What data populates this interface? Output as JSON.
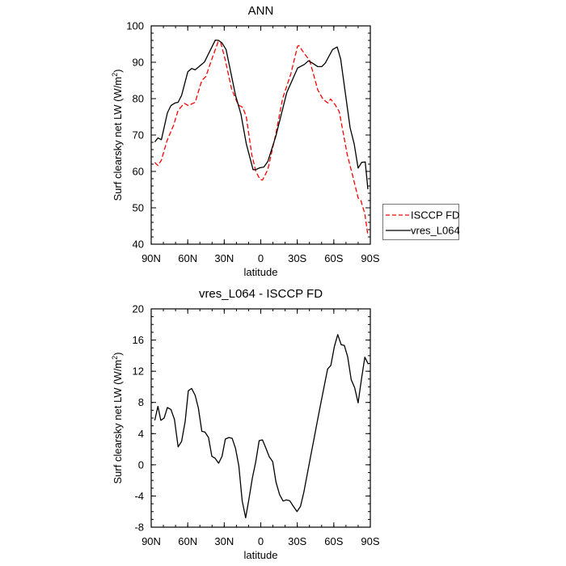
{
  "chart_data": [
    {
      "type": "line",
      "title": "ANN",
      "xlabel": "latitude",
      "ylabel": "Surf clearsky net LW (W/m",
      "ylabel_sup": "2",
      "ylabel_end": ")",
      "xlim": [
        90,
        -90
      ],
      "ylim": [
        40,
        100
      ],
      "xticks": [
        90,
        60,
        30,
        0,
        -30,
        -60,
        -90
      ],
      "xtick_labels": [
        "90N",
        "60N",
        "30N",
        "0",
        "30S",
        "60S",
        "90S"
      ],
      "yticks": [
        40,
        50,
        60,
        70,
        80,
        90,
        100
      ],
      "ytick_labels": [
        "40",
        "50",
        "60",
        "70",
        "80",
        "90",
        "100"
      ],
      "legend": {
        "placement": "right",
        "entries": [
          "ISCCP FD",
          "vres_L064"
        ]
      },
      "series": [
        {
          "name": "ISCCP FD",
          "color": "#ff0000",
          "dash": true,
          "x": [
            87.1,
            84.5,
            81.6,
            77.2,
            71.6,
            67.9,
            62.8,
            59.5,
            53.9,
            48.4,
            45.1,
            40.6,
            35.1,
            32.9,
            29.6,
            24,
            18.5,
            14.8,
            11.9,
            7.4,
            4.1,
            0.8,
            -1.4,
            -5.8,
            -12.5,
            -18,
            -24.7,
            -30.2,
            -31.3,
            -35.8,
            -40.2,
            -46.8,
            -51.2,
            -55.2,
            -57.4,
            -61.2,
            -64.5,
            -71.1,
            -75.6,
            -80,
            -82.2,
            -85.5,
            -88
          ],
          "y": [
            62.5,
            61.6,
            63.1,
            68.3,
            72.7,
            76.8,
            78.7,
            78.1,
            79,
            85,
            86.1,
            90.5,
            95.6,
            95.4,
            91.3,
            82.7,
            78.3,
            77.6,
            75,
            64.6,
            60.1,
            57.9,
            57.6,
            60.5,
            70.5,
            80.1,
            86.8,
            94.4,
            94.6,
            92.4,
            90.5,
            82.4,
            79.8,
            78.8,
            79.9,
            78.3,
            76.4,
            64.6,
            58.7,
            52.7,
            52,
            48.4,
            42.4
          ]
        },
        {
          "name": "vres_L064",
          "color": "#000000",
          "dash": false,
          "x": [
            87.1,
            84.5,
            81.6,
            76.7,
            73.8,
            70.5,
            67.9,
            65,
            59.9,
            56.8,
            53.9,
            46.2,
            37.3,
            34.6,
            31.8,
            28.5,
            20.7,
            16.3,
            11.9,
            6.3,
            4.1,
            0.8,
            -2.5,
            -5.8,
            -12.5,
            -21.4,
            -24.7,
            -30.2,
            -35.8,
            -39.1,
            -42.4,
            -46.8,
            -50.1,
            -53,
            -59,
            -62.8,
            -65.6,
            -73.4,
            -76.7,
            -80,
            -82.9,
            -85.8,
            -88
          ],
          "y": [
            68.1,
            69.2,
            68.7,
            76.1,
            78.1,
            78.8,
            79,
            80.9,
            87.4,
            88.3,
            87.9,
            90.1,
            96.1,
            96,
            95.3,
            93.5,
            80.9,
            75.7,
            67.6,
            60.5,
            60.5,
            61,
            61.2,
            62.7,
            69.8,
            81.7,
            84.2,
            88.4,
            89.4,
            90.4,
            89.8,
            88.8,
            88.8,
            89.8,
            93.5,
            94.2,
            90.9,
            72,
            67.6,
            60.9,
            62.5,
            62.6,
            55.1
          ]
        }
      ]
    },
    {
      "type": "line",
      "title": "vres_L064 - ISCCP FD",
      "xlabel": "latitude",
      "ylabel": "Surf clearsky net LW (W/m",
      "ylabel_sup": "2",
      "ylabel_end": ")",
      "xlim": [
        90,
        -90
      ],
      "ylim": [
        -8,
        20
      ],
      "xticks": [
        90,
        60,
        30,
        0,
        -30,
        -60,
        -90
      ],
      "xtick_labels": [
        "90N",
        "60N",
        "30N",
        "0",
        "30S",
        "60S",
        "90S"
      ],
      "yticks": [
        -8,
        -4,
        0,
        4,
        8,
        12,
        16,
        20
      ],
      "ytick_labels": [
        "-8",
        "-4",
        "0",
        "4",
        "8",
        "12",
        "16",
        "20"
      ],
      "series": [
        {
          "name": "vres_L064 - ISCCP FD",
          "color": "#000000",
          "dash": false,
          "x": [
            87.1,
            84.5,
            82.1,
            79.4,
            76.7,
            73.8,
            70.9,
            67.9,
            65,
            62.1,
            59.5,
            56.8,
            53.9,
            51.3,
            48.4,
            45.8,
            42.9,
            40.2,
            37.5,
            34.6,
            31.8,
            29.1,
            26.2,
            23.5,
            20.7,
            18,
            15.3,
            12.4,
            9.8,
            6.9,
            4.1,
            1.3,
            -1.4,
            -4.3,
            -6.9,
            -9.8,
            -12.5,
            -15.4,
            -18.3,
            -20.9,
            -23.8,
            -26.7,
            -29.8,
            -32.7,
            -35.5,
            -38.2,
            -40.9,
            -43.7,
            -46.4,
            -49.2,
            -52,
            -54.9,
            -57.6,
            -60.5,
            -63.2,
            -66.1,
            -68.7,
            -71.4,
            -74.3,
            -77.1,
            -80,
            -82.6,
            -85.5,
            -88.4
          ],
          "y": [
            5.7,
            7.5,
            5.7,
            6,
            7.35,
            7.1,
            5.8,
            2.3,
            3,
            5.55,
            9.5,
            9.8,
            8.9,
            7.3,
            4.3,
            4.2,
            3.5,
            1.1,
            0.85,
            0.2,
            1.1,
            3.3,
            3.5,
            3.4,
            2.1,
            -0.15,
            -4.6,
            -6.8,
            -4.5,
            -1.7,
            0.4,
            3.1,
            3.2,
            2.1,
            1.05,
            0.4,
            -2.2,
            -3.8,
            -4.65,
            -4.5,
            -4.6,
            -5.3,
            -6,
            -5.3,
            -3.45,
            -1.2,
            1.05,
            3.3,
            5.55,
            7.8,
            10,
            12.3,
            12.75,
            15.2,
            16.7,
            15.4,
            15.3,
            13.85,
            10.9,
            9.9,
            7.95,
            10.9,
            13.8,
            12.9
          ]
        }
      ]
    }
  ]
}
